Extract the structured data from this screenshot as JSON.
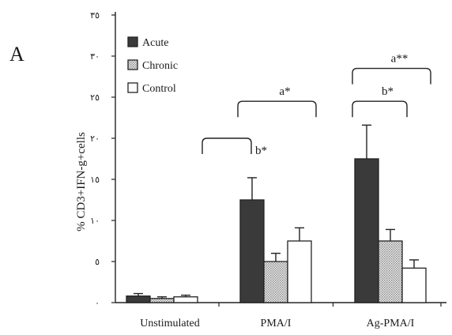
{
  "panel_label": "A",
  "chart_data": {
    "type": "bar",
    "ylabel": "% CD3+IFN-g+cells",
    "xlabel": "",
    "ylim": [
      0,
      35
    ],
    "yticks": [
      0,
      5,
      10,
      15,
      20,
      25,
      30,
      35
    ],
    "ytick_labels": [
      "٠",
      "٥",
      "١٠",
      "١٥",
      "٢٠",
      "٢٥",
      "٣٠",
      "٣٥"
    ],
    "categories": [
      "Unstimulated",
      "PMA/I",
      "Ag-PMA/I"
    ],
    "series": [
      {
        "name": "Acute",
        "pattern": "solid",
        "color": "#3a3a3a",
        "values": [
          0.8,
          12.5,
          17.5
        ],
        "errors": [
          0.3,
          2.7,
          4.1
        ]
      },
      {
        "name": "Chronic",
        "pattern": "dotted",
        "color": "#d4d4d4",
        "values": [
          0.5,
          5.0,
          7.5
        ],
        "errors": [
          0.2,
          1.0,
          1.4
        ]
      },
      {
        "name": "Control",
        "pattern": "open",
        "color": "#ffffff",
        "values": [
          0.7,
          7.5,
          4.2
        ],
        "errors": [
          0.2,
          1.6,
          1.0
        ]
      }
    ],
    "legend_position": "top-left",
    "grid": false,
    "annotations": [
      {
        "text": "b*",
        "from": "Unstimulated",
        "to": "PMA/I",
        "level": 20
      },
      {
        "text": "a*",
        "from": "PMA/I.Acute",
        "to": "PMA/I.Control",
        "level": 24.5
      },
      {
        "text": "b*",
        "from": "Ag-PMA/I.Acute",
        "to": "Ag-PMA/I.Chronic",
        "level": 24.5
      },
      {
        "text": "a**",
        "from": "Ag-PMA/I.Acute",
        "to": "Ag-PMA/I.Control",
        "level": 28.5
      }
    ]
  }
}
